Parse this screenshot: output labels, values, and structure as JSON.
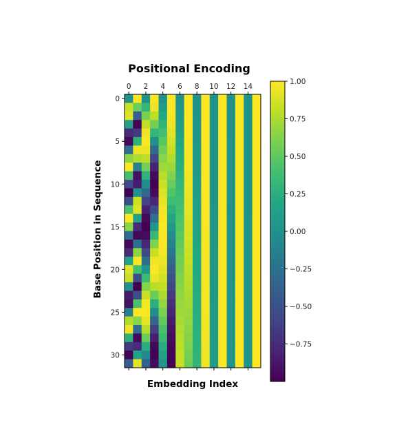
{
  "chart_data": {
    "type": "heatmap",
    "title": "Positional Encoding",
    "xlabel": "Embedding Index",
    "ylabel": "Base Position in Sequence",
    "x_ticks": [
      0,
      2,
      4,
      6,
      8,
      10,
      12,
      14
    ],
    "y_ticks": [
      0,
      5,
      10,
      15,
      20,
      25,
      30
    ],
    "x_tick_position": "top",
    "rows": 32,
    "cols": 16,
    "colormap": "viridis",
    "vmin": -1.0,
    "vmax": 1.0,
    "colorbar_ticks": [
      1.0,
      0.75,
      0.5,
      0.25,
      0.0,
      -0.25,
      -0.5,
      -0.75
    ],
    "colorbar_tick_labels": [
      "1.00",
      "0.75",
      "0.50",
      "0.25",
      "0.00",
      "−0.25",
      "−0.50",
      "−0.75"
    ],
    "encoding": "even index i: sin(pos / 10000^(i/16)); odd index i: cos(pos / 10000^((i-1)/16))",
    "grid": false,
    "colorbar_placement": "right"
  }
}
